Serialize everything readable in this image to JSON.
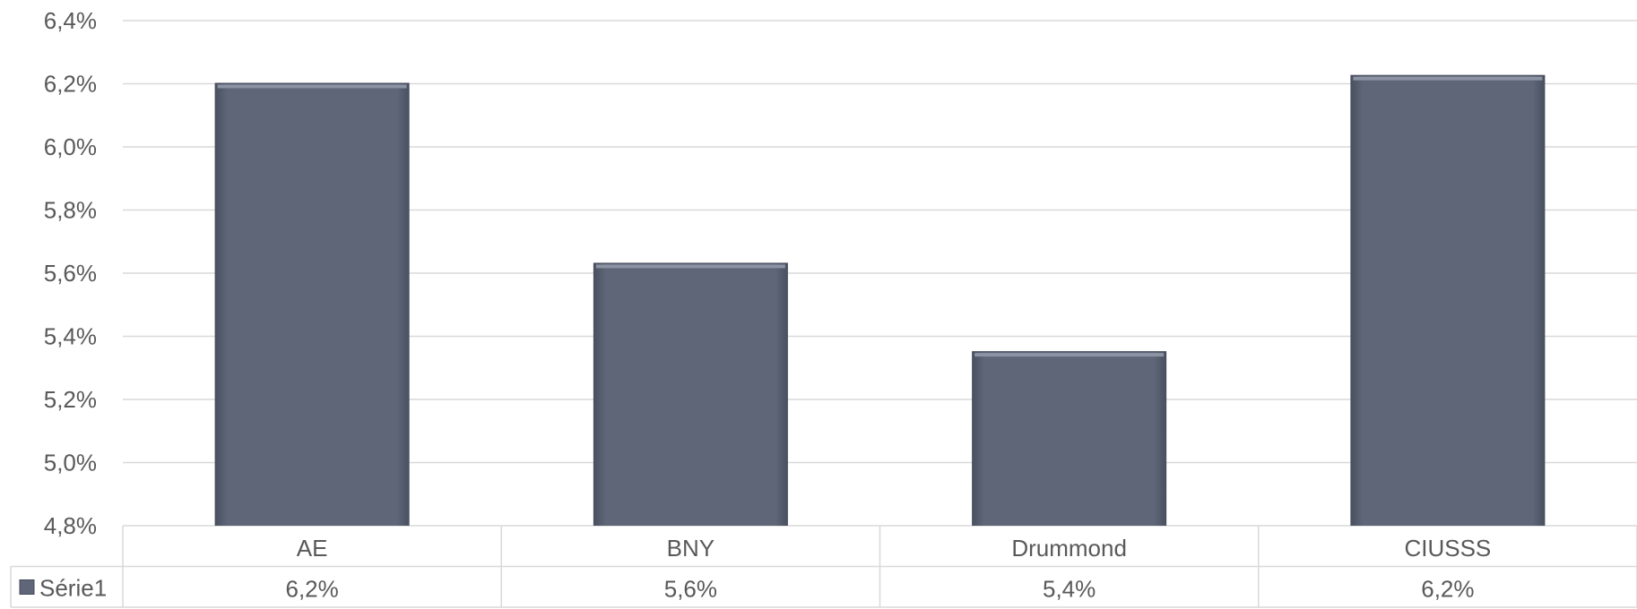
{
  "chart_data": {
    "type": "bar",
    "categories": [
      "AE",
      "BNY",
      "Drummond",
      "CIUSSS"
    ],
    "series": [
      {
        "name": "Série1",
        "values": [
          6.2,
          5.63,
          5.35,
          6.225
        ],
        "data_labels": [
          "6,2%",
          "5,6%",
          "5,4%",
          "6,2%"
        ],
        "color": "#5e6678"
      }
    ],
    "ylim": [
      4.8,
      6.4
    ],
    "yticks": [
      {
        "value": 4.8,
        "label": "4,8%"
      },
      {
        "value": 5.0,
        "label": "5,0%"
      },
      {
        "value": 5.2,
        "label": "5,2%"
      },
      {
        "value": 5.4,
        "label": "5,4%"
      },
      {
        "value": 5.6,
        "label": "5,6%"
      },
      {
        "value": 5.8,
        "label": "5,8%"
      },
      {
        "value": 6.0,
        "label": "6,0%"
      },
      {
        "value": 6.2,
        "label": "6,2%"
      },
      {
        "value": 6.4,
        "label": "6,4%"
      }
    ],
    "grid": true,
    "legend": "data-table",
    "title": "",
    "xlabel": "",
    "ylabel": ""
  }
}
